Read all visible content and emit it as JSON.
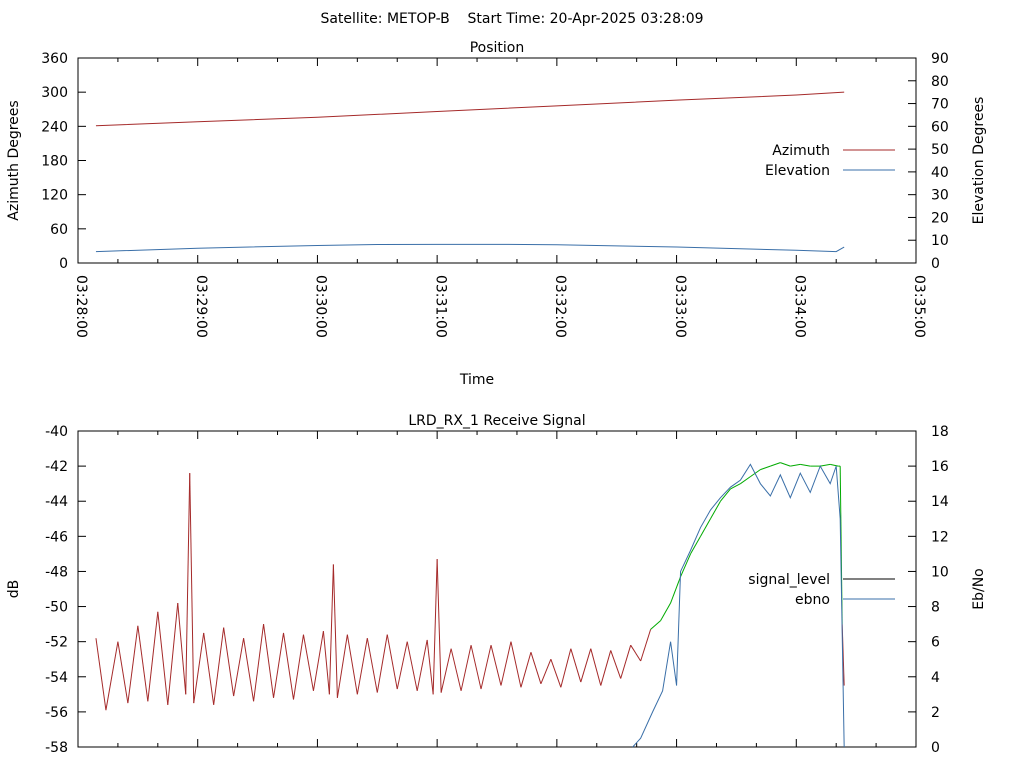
{
  "header": {
    "title": "Satellite: METOP-B    Start Time: 20-Apr-2025 03:28:09"
  },
  "chart_data": [
    {
      "type": "line",
      "title": "Position",
      "xlabel": "Time",
      "ylabel": "Azimuth Degrees",
      "y2label": "Elevation Degrees",
      "xlim": [
        "03:28:00",
        "03:35:00"
      ],
      "x_ticks": [
        "03:28:00",
        "03:29:00",
        "03:30:00",
        "03:31:00",
        "03:32:00",
        "03:33:00",
        "03:34:00",
        "03:35:00"
      ],
      "ylim": [
        0,
        360
      ],
      "y_ticks": [
        0,
        60,
        120,
        180,
        240,
        300,
        360
      ],
      "y2lim": [
        0,
        90
      ],
      "y2_ticks": [
        0,
        10,
        20,
        30,
        40,
        50,
        60,
        70,
        80,
        90
      ],
      "legend_placement": "right",
      "grid": false,
      "series": [
        {
          "name": "Azimuth",
          "axis": "y",
          "color": "#a52a2a",
          "x": [
            "03:28:09",
            "03:29:00",
            "03:30:00",
            "03:31:00",
            "03:32:00",
            "03:33:00",
            "03:34:00",
            "03:34:24"
          ],
          "values": [
            241,
            248,
            256,
            266,
            276,
            286,
            295,
            300
          ]
        },
        {
          "name": "Elevation",
          "axis": "y2",
          "color": "#3a6fa8",
          "x": [
            "03:28:09",
            "03:29:00",
            "03:30:00",
            "03:30:30",
            "03:31:00",
            "03:31:30",
            "03:32:00",
            "03:33:00",
            "03:34:00",
            "03:34:20",
            "03:34:24"
          ],
          "values": [
            5.0,
            6.5,
            7.7,
            8.1,
            8.2,
            8.2,
            8.0,
            7.0,
            5.6,
            5.0,
            7.0
          ]
        }
      ]
    },
    {
      "type": "line",
      "title": "LRD_RX_1 Receive Signal",
      "ylabel": "dB",
      "y2label": "Eb/No",
      "xlim": [
        "03:28:00",
        "03:35:00"
      ],
      "ylim": [
        -58,
        -40
      ],
      "y_ticks": [
        -58,
        -56,
        -54,
        -52,
        -50,
        -48,
        -46,
        -44,
        -42,
        -40
      ],
      "y2lim": [
        0,
        18
      ],
      "y2_ticks": [
        0,
        2,
        4,
        6,
        8,
        10,
        12,
        14,
        16,
        18
      ],
      "legend_placement": "right",
      "grid": false,
      "series": [
        {
          "name": "signal_level",
          "axis": "y",
          "color": "#a52a2a",
          "color_high": "#00aa00",
          "x": [
            "03:28:09",
            "03:28:14",
            "03:28:20",
            "03:28:25",
            "03:28:30",
            "03:28:35",
            "03:28:40",
            "03:28:45",
            "03:28:50",
            "03:28:54",
            "03:28:56",
            "03:28:58",
            "03:29:03",
            "03:29:08",
            "03:29:13",
            "03:29:18",
            "03:29:23",
            "03:29:28",
            "03:29:33",
            "03:29:38",
            "03:29:43",
            "03:29:48",
            "03:29:53",
            "03:29:58",
            "03:30:03",
            "03:30:06",
            "03:30:08",
            "03:30:10",
            "03:30:15",
            "03:30:20",
            "03:30:25",
            "03:30:30",
            "03:30:35",
            "03:30:40",
            "03:30:45",
            "03:30:50",
            "03:30:55",
            "03:30:58",
            "03:31:00",
            "03:31:02",
            "03:31:07",
            "03:31:12",
            "03:31:17",
            "03:31:22",
            "03:31:27",
            "03:31:32",
            "03:31:37",
            "03:31:42",
            "03:31:47",
            "03:31:52",
            "03:31:57",
            "03:32:02",
            "03:32:07",
            "03:32:12",
            "03:32:17",
            "03:32:22",
            "03:32:27",
            "03:32:32",
            "03:32:37",
            "03:32:42",
            "03:32:47",
            "03:32:52",
            "03:32:57",
            "03:33:02",
            "03:33:07",
            "03:33:12",
            "03:33:17",
            "03:33:22",
            "03:33:27",
            "03:33:32",
            "03:33:37",
            "03:33:42",
            "03:33:47",
            "03:33:52",
            "03:33:57",
            "03:34:02",
            "03:34:07",
            "03:34:12",
            "03:34:17",
            "03:34:21",
            "03:34:22",
            "03:34:23",
            "03:34:24"
          ],
          "values": [
            -51.8,
            -55.9,
            -52.0,
            -55.5,
            -51.1,
            -55.4,
            -50.3,
            -55.6,
            -49.8,
            -55.0,
            -42.4,
            -55.5,
            -51.5,
            -55.6,
            -51.2,
            -55.1,
            -51.8,
            -55.4,
            -51.0,
            -55.2,
            -51.5,
            -55.3,
            -51.6,
            -54.8,
            -51.4,
            -55.0,
            -47.6,
            -55.2,
            -51.6,
            -55.0,
            -51.8,
            -54.9,
            -51.6,
            -54.7,
            -52.0,
            -54.8,
            -51.9,
            -55.0,
            -47.3,
            -54.9,
            -52.4,
            -54.8,
            -52.2,
            -54.7,
            -52.2,
            -54.5,
            -52.0,
            -54.6,
            -52.6,
            -54.4,
            -53.0,
            -54.6,
            -52.4,
            -54.3,
            -52.4,
            -54.5,
            -52.5,
            -54.1,
            -52.2,
            -53.1,
            -51.3,
            -50.8,
            -49.8,
            -48.3,
            -47.0,
            -46.0,
            -45.0,
            -44.0,
            -43.3,
            -43.0,
            -42.6,
            -42.2,
            -42.0,
            -41.8,
            -42.0,
            -41.9,
            -42.0,
            -42.0,
            -41.9,
            -42.0,
            -42.0,
            -51.0,
            -54.5
          ]
        },
        {
          "name": "ebno",
          "axis": "y2",
          "color": "#3a6fa8",
          "x": [
            "03:32:38",
            "03:32:42",
            "03:32:48",
            "03:32:53",
            "03:32:57",
            "03:33:00",
            "03:33:02",
            "03:33:07",
            "03:33:12",
            "03:33:17",
            "03:33:22",
            "03:33:27",
            "03:33:32",
            "03:33:37",
            "03:33:42",
            "03:33:47",
            "03:33:52",
            "03:33:57",
            "03:34:02",
            "03:34:07",
            "03:34:12",
            "03:34:17",
            "03:34:20",
            "03:34:22",
            "03:34:24"
          ],
          "values": [
            0.0,
            0.5,
            2.0,
            3.2,
            6.0,
            3.5,
            10.0,
            11.2,
            12.5,
            13.5,
            14.2,
            14.8,
            15.2,
            16.1,
            15.0,
            14.3,
            15.5,
            14.2,
            15.6,
            14.5,
            16.0,
            15.0,
            16.0,
            13.0,
            0.0
          ]
        }
      ]
    }
  ]
}
